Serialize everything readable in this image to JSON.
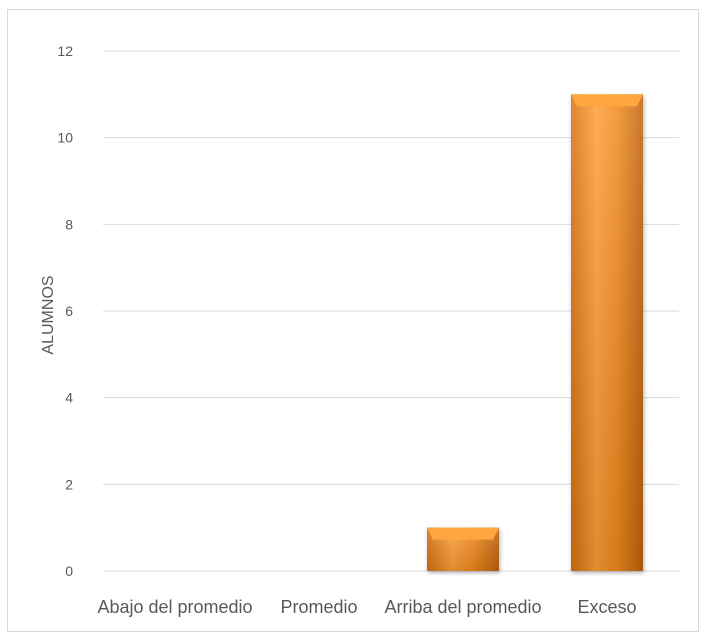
{
  "chart_data": {
    "type": "bar",
    "title": "",
    "xlabel": "",
    "ylabel": "ALUMNOS",
    "categories": [
      "Abajo del promedio",
      "Promedio",
      "Arriba del promedio",
      "Exceso"
    ],
    "values": [
      0,
      0,
      1,
      11
    ],
    "ylim": [
      0,
      12
    ],
    "yticks": [
      0,
      2,
      4,
      6,
      8,
      10,
      12
    ],
    "grid": true,
    "legend": "none",
    "colors": {
      "bar_light": "#ffa640",
      "bar_mid": "#f28a1e",
      "bar_dark": "#b85c0c",
      "grid": "#d9d9d9",
      "axis_text": "#595959"
    }
  }
}
